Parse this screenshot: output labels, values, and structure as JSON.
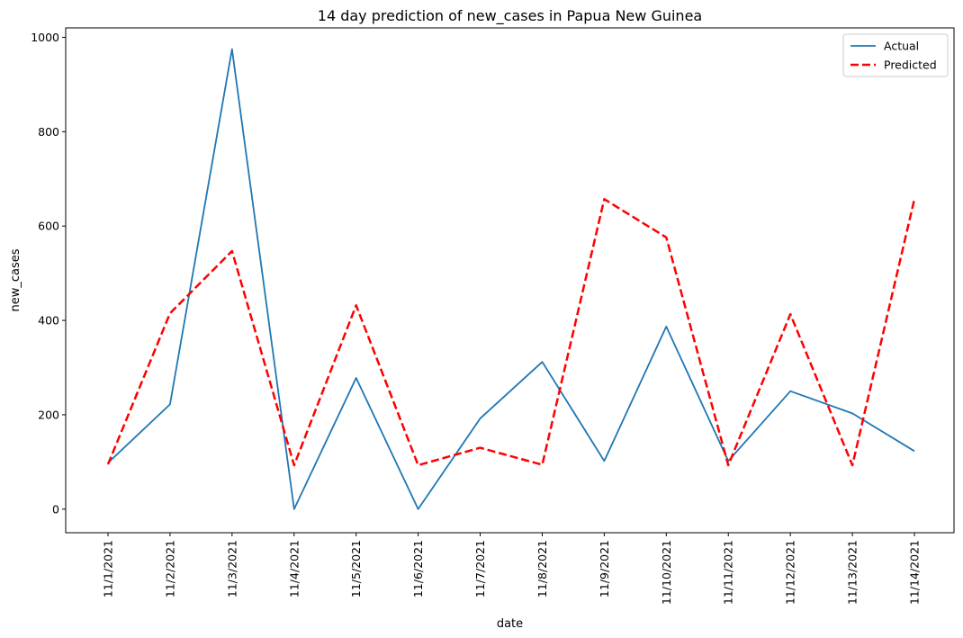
{
  "chart_data": {
    "type": "line",
    "title": "14 day prediction of new_cases in Papua New Guinea",
    "xlabel": "date",
    "ylabel": "new_cases",
    "categories": [
      "11/1/2021",
      "11/2/2021",
      "11/3/2021",
      "11/4/2021",
      "11/5/2021",
      "11/6/2021",
      "11/7/2021",
      "11/8/2021",
      "11/9/2021",
      "11/10/2021",
      "11/11/2021",
      "11/12/2021",
      "11/13/2021",
      "11/14/2021"
    ],
    "ylim": [
      -50,
      1020
    ],
    "yticks": [
      0,
      200,
      400,
      600,
      800,
      1000
    ],
    "grid": false,
    "legend_position": "top-right",
    "series": [
      {
        "name": "Actual",
        "color": "#1f77b4",
        "style": "solid",
        "values": [
          98,
          222,
          975,
          0,
          278,
          0,
          192,
          312,
          102,
          387,
          102,
          250,
          203,
          123
        ]
      },
      {
        "name": "Predicted",
        "color": "#ff0000",
        "style": "dashed",
        "values": [
          95,
          415,
          547,
          93,
          432,
          93,
          130,
          94,
          657,
          576,
          93,
          413,
          93,
          657
        ]
      }
    ]
  }
}
